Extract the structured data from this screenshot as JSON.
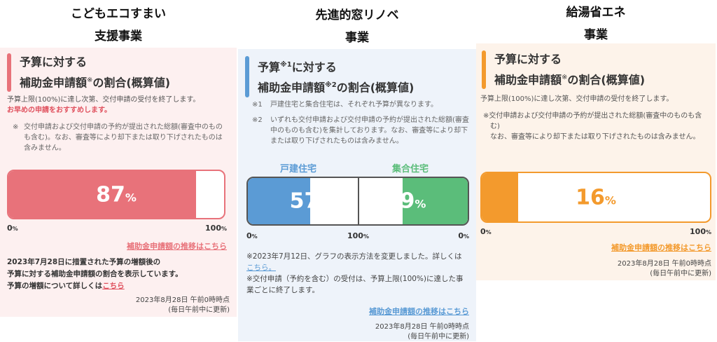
{
  "columns": [
    {
      "title1": "こどもエコすまい",
      "title2": "支援事業",
      "heading1": "予算に対する",
      "heading2": "補助金申請額",
      "heading2b": "の割合(概算値)",
      "mark": "※",
      "note1": "予算上限(100%)に達し次第、交付申請の受付を終了します。",
      "note_red": "お早めの申請をおすすめします。",
      "footnote_mark": "※",
      "footnote": "交付申請および交付申請の予約が提出された総額(審査中のものも含む)。なお、審査等により却下または取り下げされたものは含みません。",
      "percent": 87,
      "percent_label": "87",
      "unit": "%",
      "axis_min": "0",
      "axis_max": "100",
      "axis_unit": "%",
      "trend_link": "補助金申請額の推移はこちら",
      "extra1": "2023年7月28日に措置された予算の増額後の",
      "extra2": "予算に対する補助金申請額の割合を表示しています。",
      "extra3": "予算の増額について詳しくは",
      "extra_link": "こちら",
      "updated": "2023年8月28日 午前0時時点",
      "update_note": "(毎日午前中に更新)",
      "color": "#e8727a"
    },
    {
      "title1": "先進的窓リノベ",
      "title2": "事業",
      "heading1a": "予算",
      "sup1": "※1",
      "heading1b": "に対する",
      "heading2": "補助金申請額",
      "sup2": "※2",
      "heading2b": "の割合(概算値)",
      "n1_mark": "※1",
      "n1": "戸建住宅と集合住宅は、それぞれ予算が異なります。",
      "n2_mark": "※2",
      "n2": "いずれも交付申請および交付申請の予約が提出された総額(審査中のものも含む)を集計しております。なお、審査等により却下または取り下げされたものは含みません。",
      "left_label": "戸建住宅",
      "right_label": "集合住宅",
      "left_percent": 57,
      "left_label_val": "57",
      "right_percent": 59,
      "right_label_val": "59",
      "unit": "%",
      "axis_left": "0",
      "axis_mid": "100",
      "axis_right": "0",
      "axis_unit": "%",
      "remark1": "※2023年7月12日、グラフの表示方法を変更しました。詳しくは",
      "remark1_link": "こちら。",
      "remark2": "※交付申請（予約を含む）の受付は、予算上限(100%)に達した事業ごとに終了します。",
      "trend_link": "補助金申請額の推移はこちら",
      "updated": "2023年8月28日 午前0時時点",
      "update_note": "(毎日午前中に更新)",
      "color_left": "#5b9bd5",
      "color_right": "#5bbd7a"
    },
    {
      "title1": "給湯省エネ",
      "title2": "事業",
      "heading1": "予算に対する",
      "heading2": "補助金申請額",
      "heading2b": "の割合(概算値)",
      "mark": "※",
      "note1": "予算上限(100%)に達し次第、交付申請の受付を終了します。",
      "footnote": "※交付申請および交付申請の予約が提出された総額(審査中のものも含む)",
      "footnote2": "なお、審査等により却下または取り下げされたものは含みません。",
      "percent": 16,
      "percent_label": "16",
      "unit": "%",
      "axis_min": "0",
      "axis_max": "100",
      "axis_unit": "%",
      "trend_link": "補助金申請額の推移はこちら",
      "updated": "2023年8月28日 午前0時時点",
      "update_note": "(毎日午前中に更新)",
      "color": "#f39a2d"
    }
  ]
}
